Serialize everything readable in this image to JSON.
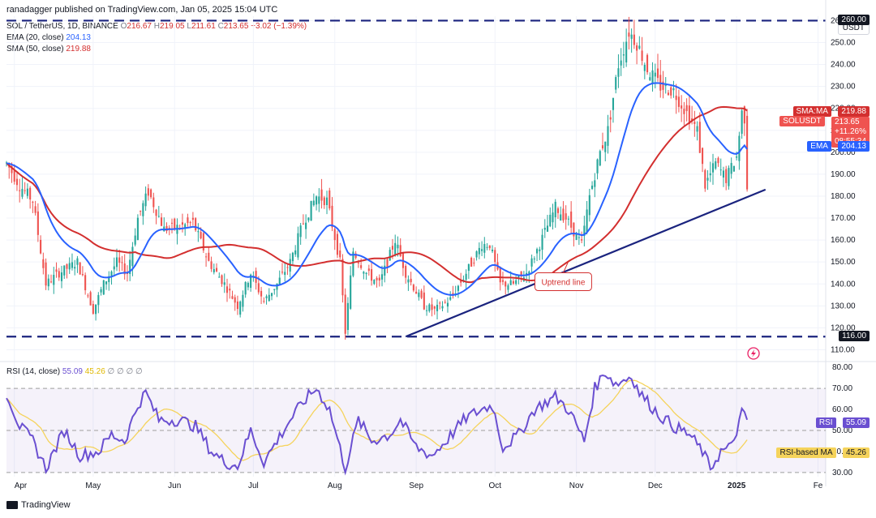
{
  "header": {
    "published": "ranadagger published on TradingView.com, Jan 05, 2025 15:04 UTC",
    "symbol_line": "SOL / TetherUS, 1D, BINANCE",
    "ohlc": {
      "O": "216.67",
      "H": "219.05",
      "L": "211.61",
      "C": "213.65",
      "change": "−3.02 (−1.39%)"
    },
    "ema_label": "EMA (20, close)",
    "ema_value": "204.13",
    "sma_label": "SMA (50, close)",
    "sma_value": "219.88"
  },
  "currency": "USDT",
  "badges": {
    "sma": {
      "label": "SMA:MA",
      "value": "219.88"
    },
    "sol": {
      "label": "SOLUSDT",
      "value": "213.65",
      "change": "+11.26%",
      "timer": "08:55:34"
    },
    "ema": {
      "label": "EMA",
      "value": "204.13"
    },
    "top_level": "260.00",
    "bottom_level": "116.00",
    "rsi": {
      "label": "RSI",
      "value": "55.09"
    },
    "rsi_ma": {
      "label": "RSI-based MA",
      "value": "45.26"
    }
  },
  "rsi_legend": {
    "label": "RSI (14, close)",
    "rsi": "55.09",
    "ma": "45.26",
    "extra": "∅ ∅ ∅ ∅"
  },
  "annotation": "Uptrend line",
  "footer": "TradingView",
  "colors": {
    "red": "#d32f2f",
    "blue": "#2962ff",
    "candle_up": "#26a69a",
    "candle_down": "#ef5350",
    "rsi": "#6a4fd1",
    "rsi_ma": "#f5d35b",
    "trend": "#1a237e"
  },
  "chart_data": [
    {
      "type": "candlestick",
      "title": "SOL / TetherUS, 1D, BINANCE",
      "x_ticks": [
        "Apr",
        "May",
        "Jun",
        "Jul",
        "Aug",
        "Sep",
        "Oct",
        "Nov",
        "Dec",
        "2025",
        "Fe"
      ],
      "y_ticks": [
        110,
        120,
        130,
        140,
        150,
        160,
        170,
        180,
        190,
        200,
        210,
        220,
        230,
        240,
        250,
        260
      ],
      "y_range": [
        105,
        262
      ],
      "horizontal_levels": [
        260,
        116
      ],
      "trend_line": {
        "from": [
          "Aug 28",
          116
        ],
        "to": [
          "Jan 12",
          183
        ],
        "label": "Uptrend line"
      },
      "price_path": [
        [
          "Mar 29",
          195
        ],
        [
          "Apr 03",
          185
        ],
        [
          "Apr 08",
          178
        ],
        [
          "Apr 13",
          140
        ],
        [
          "Apr 18",
          145
        ],
        [
          "Apr 25",
          150
        ],
        [
          "May 01",
          128
        ],
        [
          "May 05",
          140
        ],
        [
          "May 10",
          150
        ],
        [
          "May 14",
          145
        ],
        [
          "May 18",
          170
        ],
        [
          "May 22",
          182
        ],
        [
          "May 28",
          165
        ],
        [
          "Jun 03",
          166
        ],
        [
          "Jun 08",
          168
        ],
        [
          "Jun 14",
          150
        ],
        [
          "Jun 20",
          140
        ],
        [
          "Jun 25",
          130
        ],
        [
          "Jun 30",
          145
        ],
        [
          "Jul 05",
          132
        ],
        [
          "Jul 10",
          140
        ],
        [
          "Jul 15",
          150
        ],
        [
          "Jul 20",
          168
        ],
        [
          "Jul 25",
          180
        ],
        [
          "Jul 29",
          178
        ],
        [
          "Aug 03",
          150
        ],
        [
          "Aug 05",
          118
        ],
        [
          "Aug 08",
          155
        ],
        [
          "Aug 13",
          145
        ],
        [
          "Aug 18",
          140
        ],
        [
          "Aug 24",
          160
        ],
        [
          "Aug 28",
          145
        ],
        [
          "Sep 04",
          130
        ],
        [
          "Sep 08",
          128
        ],
        [
          "Sep 14",
          133
        ],
        [
          "Sep 20",
          145
        ],
        [
          "Sep 26",
          158
        ],
        [
          "Sep 29",
          158
        ],
        [
          "Oct 03",
          140
        ],
        [
          "Oct 08",
          140
        ],
        [
          "Oct 13",
          145
        ],
        [
          "Oct 18",
          158
        ],
        [
          "Oct 24",
          175
        ],
        [
          "Oct 28",
          170
        ],
        [
          "Nov 03",
          158
        ],
        [
          "Nov 06",
          180
        ],
        [
          "Nov 10",
          200
        ],
        [
          "Nov 13",
          210
        ],
        [
          "Nov 17",
          240
        ],
        [
          "Nov 21",
          255
        ],
        [
          "Nov 24",
          250
        ],
        [
          "Nov 28",
          238
        ],
        [
          "Dec 03",
          230
        ],
        [
          "Dec 08",
          228
        ],
        [
          "Dec 13",
          218
        ],
        [
          "Dec 17",
          210
        ],
        [
          "Dec 20",
          185
        ],
        [
          "Dec 24",
          195
        ],
        [
          "Dec 28",
          188
        ],
        [
          "Jan 01",
          198
        ],
        [
          "Jan 03",
          218
        ],
        [
          "Jan 05",
          213.65
        ]
      ],
      "series": [
        {
          "name": "EMA (20, close)",
          "last": 204.13
        },
        {
          "name": "SMA (50, close)",
          "last": 219.88
        }
      ]
    },
    {
      "type": "line",
      "title": "RSI (14, close)",
      "y_ticks": [
        30,
        40,
        50,
        60,
        70,
        80
      ],
      "y_range": [
        28,
        82
      ],
      "overbought": 70,
      "oversold": 30,
      "rsi_path": [
        [
          "Mar 29",
          68
        ],
        [
          "Apr 03",
          52
        ],
        [
          "Apr 08",
          45
        ],
        [
          "Apr 13",
          32
        ],
        [
          "Apr 20",
          50
        ],
        [
          "Apr 26",
          38
        ],
        [
          "May 03",
          40
        ],
        [
          "May 08",
          48
        ],
        [
          "May 13",
          45
        ],
        [
          "May 18",
          62
        ],
        [
          "May 21",
          68
        ],
        [
          "May 26",
          55
        ],
        [
          "Jun 03",
          55
        ],
        [
          "Jun 09",
          52
        ],
        [
          "Jun 15",
          40
        ],
        [
          "Jun 20",
          35
        ],
        [
          "Jun 25",
          33
        ],
        [
          "Jun 30",
          50
        ],
        [
          "Jul 05",
          35
        ],
        [
          "Jul 10",
          45
        ],
        [
          "Jul 15",
          55
        ],
        [
          "Jul 21",
          65
        ],
        [
          "Jul 25",
          70
        ],
        [
          "Jul 30",
          60
        ],
        [
          "Aug 05",
          32
        ],
        [
          "Aug 10",
          55
        ],
        [
          "Aug 15",
          45
        ],
        [
          "Aug 22",
          48
        ],
        [
          "Aug 26",
          55
        ],
        [
          "Sep 01",
          42
        ],
        [
          "Sep 07",
          38
        ],
        [
          "Sep 13",
          46
        ],
        [
          "Sep 20",
          56
        ],
        [
          "Sep 26",
          60
        ],
        [
          "Sep 30",
          62
        ],
        [
          "Oct 04",
          42
        ],
        [
          "Oct 10",
          48
        ],
        [
          "Oct 16",
          60
        ],
        [
          "Oct 24",
          66
        ],
        [
          "Oct 29",
          60
        ],
        [
          "Nov 04",
          45
        ],
        [
          "Nov 08",
          70
        ],
        [
          "Nov 12",
          78
        ],
        [
          "Nov 16",
          72
        ],
        [
          "Nov 22",
          76
        ],
        [
          "Nov 25",
          68
        ],
        [
          "Dec 02",
          58
        ],
        [
          "Dec 08",
          52
        ],
        [
          "Dec 14",
          48
        ],
        [
          "Dec 19",
          40
        ],
        [
          "Dec 22",
          32
        ],
        [
          "Dec 26",
          40
        ],
        [
          "Dec 30",
          42
        ],
        [
          "Jan 03",
          58
        ],
        [
          "Jan 05",
          55.09
        ]
      ],
      "series": [
        {
          "name": "RSI",
          "last": 55.09
        },
        {
          "name": "RSI-based MA",
          "last": 45.26
        }
      ]
    }
  ]
}
